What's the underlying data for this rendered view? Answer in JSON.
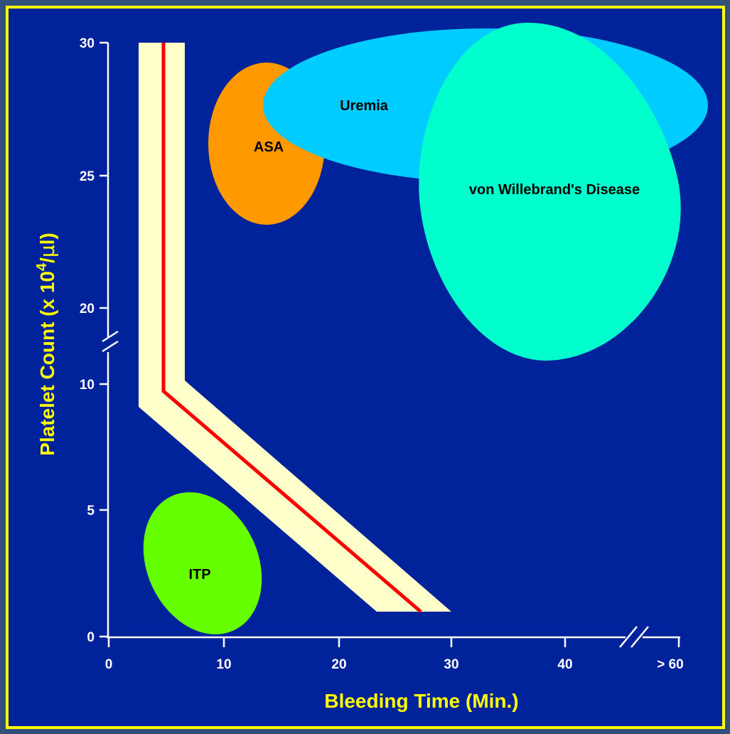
{
  "chart_data": {
    "type": "area",
    "title": "",
    "xlabel": "Bleeding Time (Min.)",
    "ylabel_parts": [
      "Platelet Count (x 10",
      "4",
      "/",
      "μ",
      "l)"
    ],
    "x_ticks": [
      "0",
      "10",
      "20",
      "30",
      "40",
      "> 60"
    ],
    "y_ticks": [
      "0",
      "5",
      "10",
      "20",
      "25",
      "30"
    ],
    "x_axis_break": "between 40 and > 60",
    "y_axis_break": "between 10 and 20",
    "regions": [
      {
        "label": "ASA",
        "color": "#ff9900",
        "bleeding_time_center": 13.8,
        "platelet_center": 26.3
      },
      {
        "label": "Uremia",
        "color": "#00ccff",
        "bleeding_time_center": 32,
        "platelet_center": 27.5
      },
      {
        "label": "von Willebrand's Disease",
        "color": "#00ffcc",
        "bleeding_time_center": 37,
        "platelet_center": 22
      },
      {
        "label": "ITP",
        "color": "#66ff00",
        "bleeding_time_center": 8.7,
        "platelet_center": 2.9
      }
    ],
    "normal_line": {
      "color": "#ff0000",
      "band_color": "#ffffcc",
      "points": [
        [
          4.8,
          30
        ],
        [
          4.8,
          9.7
        ],
        [
          27.3,
          1.0
        ]
      ]
    },
    "grid": false
  },
  "colors": {
    "background": "#00229a",
    "border": "#ffff00",
    "outer": "#33507a",
    "axis": "#ffffff"
  }
}
